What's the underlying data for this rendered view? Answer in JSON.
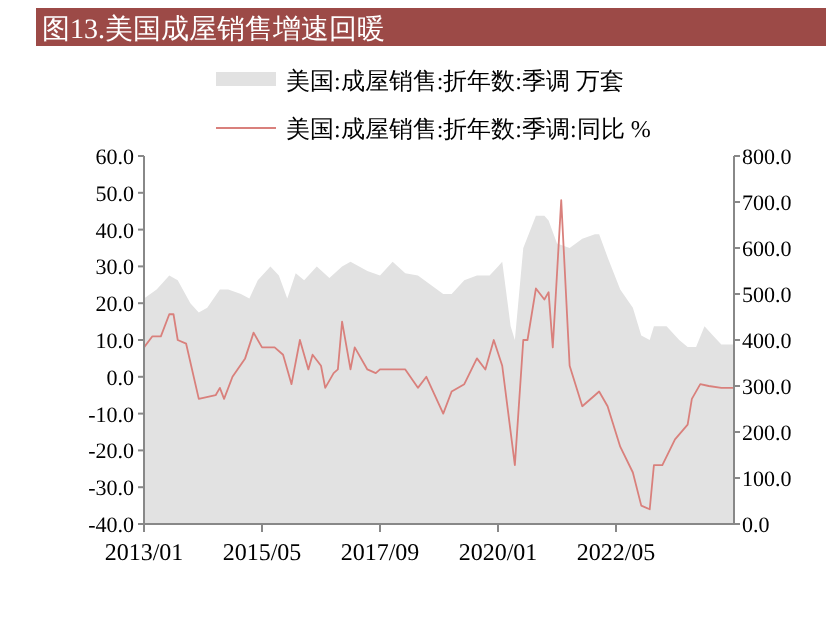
{
  "chart_data": {
    "type": "line",
    "title": "图13.美国成屋销售增速回暖",
    "legend": "top",
    "grid": false,
    "xlim": [
      "2013-01",
      "2024-09"
    ],
    "xticks": [
      {
        "value": "2013-01",
        "label": "2013/01"
      },
      {
        "value": "2015-05",
        "label": "2015/05"
      },
      {
        "value": "2017-09",
        "label": "2017/09"
      },
      {
        "value": "2020-01",
        "label": "2020/01"
      },
      {
        "value": "2022-05",
        "label": "2022/05"
      }
    ],
    "ylim": [
      -40,
      60
    ],
    "yticks": [
      {
        "value": -40,
        "label": "-40.0"
      },
      {
        "value": -30,
        "label": "-30.0"
      },
      {
        "value": -20,
        "label": "-20.0"
      },
      {
        "value": -10,
        "label": "-10.0"
      },
      {
        "value": 0,
        "label": "0.0"
      },
      {
        "value": 10,
        "label": "10.0"
      },
      {
        "value": 20,
        "label": "20.0"
      },
      {
        "value": 30,
        "label": "30.0"
      },
      {
        "value": 40,
        "label": "40.0"
      },
      {
        "value": 50,
        "label": "50.0"
      },
      {
        "value": 60,
        "label": "60.0"
      }
    ],
    "y2lim": [
      0,
      800
    ],
    "y2ticks": [
      {
        "value": 0,
        "label": "0.0"
      },
      {
        "value": 100,
        "label": "100.0"
      },
      {
        "value": 200,
        "label": "200.0"
      },
      {
        "value": 300,
        "label": "300.0"
      },
      {
        "value": 400,
        "label": "400.0"
      },
      {
        "value": 500,
        "label": "500.0"
      },
      {
        "value": 600,
        "label": "600.0"
      },
      {
        "value": 700,
        "label": "700.0"
      },
      {
        "value": 800,
        "label": "800.0"
      }
    ],
    "series": [
      {
        "name": "美国:成屋销售:折年数:季调 万套",
        "type": "area",
        "axis": "y2",
        "color": "#e2e2e2",
        "x": [
          "2013-01",
          "2013-04",
          "2013-07",
          "2013-09",
          "2013-12",
          "2014-02",
          "2014-04",
          "2014-07",
          "2014-09",
          "2014-12",
          "2015-02",
          "2015-04",
          "2015-07",
          "2015-09",
          "2015-11",
          "2016-01",
          "2016-03",
          "2016-06",
          "2016-09",
          "2016-12",
          "2017-02",
          "2017-06",
          "2017-09",
          "2017-12",
          "2018-03",
          "2018-06",
          "2018-09",
          "2018-12",
          "2019-02",
          "2019-05",
          "2019-08",
          "2019-11",
          "2020-01",
          "2020-02",
          "2020-04",
          "2020-05",
          "2020-07",
          "2020-10",
          "2020-12",
          "2021-01",
          "2021-03",
          "2021-06",
          "2021-09",
          "2021-12",
          "2022-01",
          "2022-03",
          "2022-06",
          "2022-09",
          "2022-11",
          "2023-01",
          "2023-02",
          "2023-05",
          "2023-08",
          "2023-10",
          "2023-12",
          "2024-02",
          "2024-04",
          "2024-06",
          "2024-09"
        ],
        "values": [
          490,
          510,
          540,
          530,
          480,
          460,
          470,
          510,
          510,
          500,
          490,
          530,
          560,
          540,
          490,
          545,
          530,
          560,
          535,
          560,
          570,
          550,
          540,
          570,
          545,
          540,
          520,
          500,
          500,
          530,
          540,
          540,
          560,
          570,
          430,
          400,
          600,
          670,
          670,
          660,
          610,
          600,
          620,
          630,
          630,
          580,
          510,
          470,
          410,
          400,
          430,
          430,
          400,
          385,
          385,
          430,
          410,
          390,
          390
        ]
      },
      {
        "name": "美国:成屋销售:折年数:季调:同比 %",
        "type": "line",
        "color": "#d9807c",
        "x": [
          "2013-01",
          "2013-03",
          "2013-05",
          "2013-07",
          "2013-08",
          "2013-09",
          "2013-11",
          "2014-02",
          "2014-06",
          "2014-07",
          "2014-08",
          "2014-10",
          "2015-01",
          "2015-03",
          "2015-05",
          "2015-08",
          "2015-10",
          "2015-12",
          "2016-02",
          "2016-04",
          "2016-05",
          "2016-07",
          "2016-08",
          "2016-10",
          "2016-11",
          "2016-12",
          "2017-02",
          "2017-03",
          "2017-06",
          "2017-08",
          "2017-09",
          "2018-03",
          "2018-06",
          "2018-08",
          "2018-12",
          "2019-02",
          "2019-05",
          "2019-08",
          "2019-10",
          "2019-12",
          "2020-02",
          "2020-05",
          "2020-07",
          "2020-08",
          "2020-10",
          "2020-12",
          "2021-01",
          "2021-02",
          "2021-04",
          "2021-06",
          "2021-09",
          "2021-12",
          "2022-01",
          "2022-03",
          "2022-06",
          "2022-09",
          "2022-11",
          "2023-01",
          "2023-02",
          "2023-04",
          "2023-07",
          "2023-10",
          "2023-11",
          "2024-01",
          "2024-03",
          "2024-06",
          "2024-09"
        ],
        "values": [
          8,
          11,
          11,
          17,
          17,
          10,
          9,
          -6,
          -5,
          -3,
          -6,
          0,
          5,
          12,
          8,
          8,
          6,
          -2,
          10,
          2,
          6,
          3,
          -3,
          1,
          2,
          15,
          2,
          8,
          2,
          1,
          2,
          2,
          -3,
          0,
          -10,
          -4,
          -2,
          5,
          2,
          10,
          3,
          -24,
          10,
          10,
          24,
          21,
          23,
          8,
          48,
          3,
          -8,
          -5,
          -4,
          -8,
          -19,
          -26,
          -35,
          -36,
          -24,
          -24,
          -17,
          -13,
          -6,
          -2,
          -2.5,
          -3,
          -3
        ]
      }
    ]
  }
}
